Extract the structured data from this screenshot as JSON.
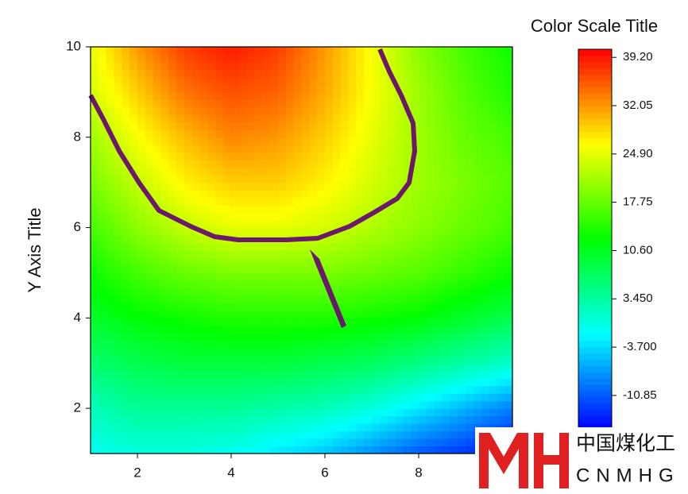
{
  "chart_data": {
    "type": "contour",
    "y_label": "Y Axis Title",
    "xlim": [
      1,
      10
    ],
    "ylim": [
      1,
      10
    ],
    "xticks": [
      2,
      4,
      6,
      8
    ],
    "yticks": [
      2,
      4,
      6,
      8,
      10
    ],
    "x": [
      1,
      2,
      3,
      4,
      5,
      6,
      7,
      8,
      9,
      10
    ],
    "y": [
      1,
      2,
      3,
      4,
      5,
      6,
      7,
      8,
      9,
      10
    ],
    "z": [
      [
        -1,
        0,
        0,
        -1,
        -3,
        -5,
        -8,
        -11,
        -13,
        -15
      ],
      [
        2,
        4,
        4,
        4,
        3,
        2,
        0,
        -3,
        -6,
        -9
      ],
      [
        6,
        8,
        9,
        9,
        9,
        8,
        7,
        5,
        3,
        1
      ],
      [
        10,
        12,
        13,
        14,
        14,
        14,
        13,
        12,
        10,
        8
      ],
      [
        13,
        16,
        18,
        19,
        19,
        19,
        18,
        17,
        15,
        13
      ],
      [
        16,
        20,
        23,
        25,
        25,
        24,
        22,
        20,
        18,
        16
      ],
      [
        19,
        23,
        27,
        29,
        29,
        27,
        24,
        21,
        19,
        17
      ],
      [
        21,
        26,
        30,
        33,
        32,
        29,
        25,
        21,
        18,
        16
      ],
      [
        24,
        29,
        34,
        36,
        35,
        31,
        26,
        21,
        17,
        14
      ],
      [
        25,
        32,
        37,
        39,
        37,
        32,
        26,
        20,
        16,
        13
      ]
    ],
    "colormap": [
      "#0000ff",
      "#00ffff",
      "#00ff00",
      "#ffff00",
      "#ff0000"
    ],
    "color_scale": {
      "title": "Color Scale Title",
      "zlim": [
        -15.8,
        40.4
      ],
      "ticks": [
        {
          "value": 39.2,
          "label": "39.20"
        },
        {
          "value": 32.05,
          "label": "32.05"
        },
        {
          "value": 24.9,
          "label": "24.90"
        },
        {
          "value": 17.75,
          "label": "17.75"
        },
        {
          "value": 10.6,
          "label": "10.60"
        },
        {
          "value": 3.45,
          "label": "3.450"
        },
        {
          "value": -3.7,
          "label": "-3.700"
        },
        {
          "value": -10.85,
          "label": "-10.85"
        }
      ]
    }
  },
  "watermark": {
    "text": "中国煤化工",
    "subtext": "CNMHG"
  }
}
